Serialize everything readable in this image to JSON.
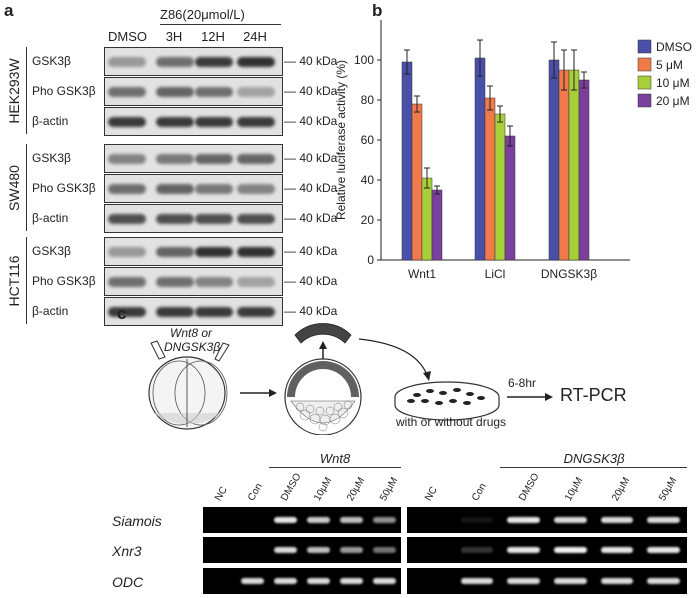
{
  "panels": {
    "a": {
      "label": "a",
      "treatment_header": "Z86(20μmol/L)",
      "lanes": [
        "DMSO",
        "3H",
        "12H",
        "24H"
      ],
      "cell_lines": [
        {
          "name": "HEK293W",
          "rows": [
            "GSK3β",
            "Pho GSK3β",
            "β-actin"
          ],
          "intensity": [
            [
              0.35,
              0.55,
              0.8,
              0.85
            ],
            [
              0.55,
              0.6,
              0.55,
              0.3
            ],
            [
              0.8,
              0.8,
              0.8,
              0.8
            ]
          ]
        },
        {
          "name": "SW480",
          "rows": [
            "GSK3β",
            "Pho GSK3β",
            "β-actin"
          ],
          "intensity": [
            [
              0.45,
              0.5,
              0.6,
              0.6
            ],
            [
              0.55,
              0.6,
              0.5,
              0.45
            ],
            [
              0.7,
              0.7,
              0.7,
              0.7
            ]
          ]
        },
        {
          "name": "HCT116",
          "rows": [
            "GSK3β",
            "Pho GSK3β",
            "β-actin"
          ],
          "intensity": [
            [
              0.35,
              0.6,
              0.85,
              0.85
            ],
            [
              0.55,
              0.55,
              0.45,
              0.3
            ],
            [
              0.8,
              0.8,
              0.8,
              0.8
            ]
          ]
        }
      ],
      "kda_label": "40 kDa"
    },
    "b": {
      "label": "b",
      "legend": [
        {
          "name": "DMSO",
          "color": "#4a4fa8"
        },
        {
          "name": "5 μM",
          "color": "#f07a4a"
        },
        {
          "name": "10 μM",
          "color": "#a6cf3a"
        },
        {
          "name": "20 μM",
          "color": "#7b3f9e"
        }
      ]
    },
    "c": {
      "label": "c",
      "injection_label_1": "Wnt8 or",
      "injection_label_2": "DNGSK3β",
      "time_label": "6-8hr",
      "rtpcr_label": "RT-PCR",
      "drug_label": "with or without drugs",
      "gel_groups": [
        {
          "title": "Wnt8",
          "lanes": [
            "NC",
            "Con",
            "DMSO",
            "10μM",
            "20μM",
            "50μM"
          ],
          "bands": [
            [
              0,
              0,
              0.9,
              0.8,
              0.75,
              0.55
            ],
            [
              0,
              0,
              0.85,
              0.75,
              0.6,
              0.45
            ],
            [
              0,
              0.85,
              0.85,
              0.85,
              0.85,
              0.85
            ]
          ]
        },
        {
          "title": "DNGSK3β",
          "lanes": [
            "NC",
            "Con",
            "DMSO",
            "10μM",
            "20μM",
            "50μM"
          ],
          "bands": [
            [
              0,
              0.08,
              0.9,
              0.85,
              0.85,
              0.85
            ],
            [
              0,
              0.2,
              0.9,
              0.95,
              0.9,
              0.9
            ],
            [
              0,
              0.85,
              0.85,
              0.85,
              0.85,
              0.85
            ]
          ]
        }
      ],
      "gene_rows": [
        "Siamois",
        "Xnr3",
        "ODC"
      ]
    }
  },
  "chart_data": {
    "type": "bar",
    "categories": [
      "Wnt1",
      "LiCl",
      "DNGSK3β"
    ],
    "series": [
      {
        "name": "DMSO",
        "values": [
          99,
          101,
          100
        ],
        "errors": [
          6,
          9,
          9
        ]
      },
      {
        "name": "5 μM",
        "values": [
          78,
          81,
          95
        ],
        "errors": [
          4,
          6,
          10
        ]
      },
      {
        "name": "10 μM",
        "values": [
          41,
          73,
          95
        ],
        "errors": [
          5,
          4,
          10
        ]
      },
      {
        "name": "20 μM",
        "values": [
          35,
          62,
          90
        ],
        "errors": [
          2,
          5,
          4
        ]
      }
    ],
    "ylabel": "Relative luciferase activity (%)",
    "ylim": [
      0,
      120
    ],
    "yticks": [
      "0",
      "20",
      "40",
      "60",
      "80",
      "100"
    ],
    "legend_position": "top-right"
  }
}
